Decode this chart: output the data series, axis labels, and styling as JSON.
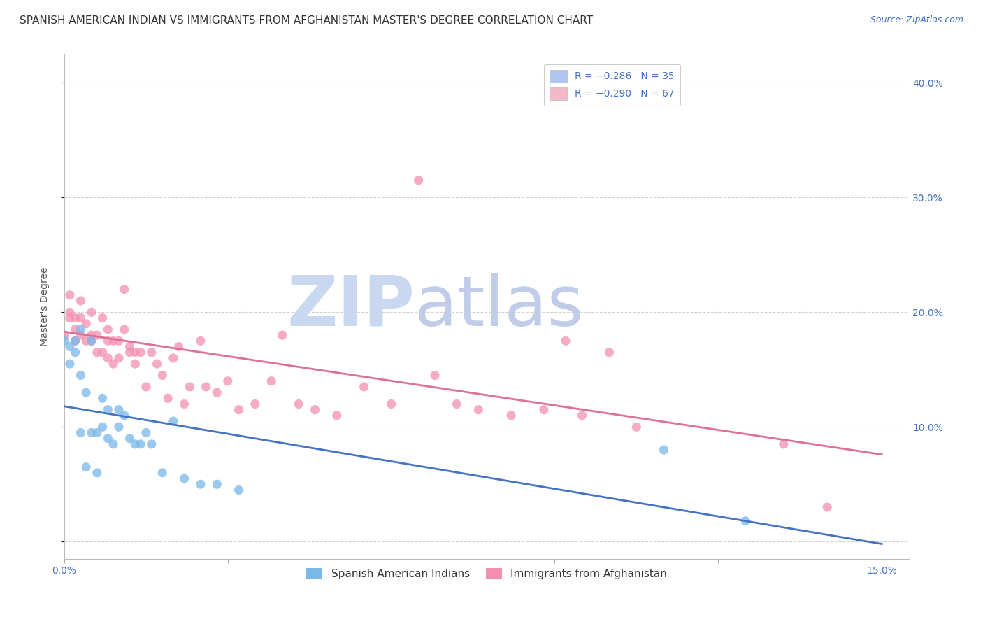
{
  "title": "SPANISH AMERICAN INDIAN VS IMMIGRANTS FROM AFGHANISTAN MASTER'S DEGREE CORRELATION CHART",
  "source": "Source: ZipAtlas.com",
  "ylabel": "Master's Degree",
  "watermark_zip": "ZIP",
  "watermark_atlas": "atlas",
  "legend_entries": [
    {
      "label": "R = −0.286   N = 35",
      "color": "#aec6f0"
    },
    {
      "label": "R = −0.290   N = 67",
      "color": "#f5b8c8"
    }
  ],
  "legend_bottom": [
    "Spanish American Indians",
    "Immigrants from Afghanistan"
  ],
  "blue_scatter_x": [
    0.0,
    0.001,
    0.001,
    0.002,
    0.002,
    0.003,
    0.003,
    0.003,
    0.004,
    0.004,
    0.005,
    0.005,
    0.006,
    0.006,
    0.007,
    0.007,
    0.008,
    0.008,
    0.009,
    0.01,
    0.01,
    0.011,
    0.012,
    0.013,
    0.014,
    0.015,
    0.016,
    0.018,
    0.02,
    0.022,
    0.025,
    0.028,
    0.032,
    0.11,
    0.125
  ],
  "blue_scatter_y": [
    0.175,
    0.17,
    0.155,
    0.175,
    0.165,
    0.095,
    0.145,
    0.185,
    0.065,
    0.13,
    0.095,
    0.175,
    0.095,
    0.06,
    0.1,
    0.125,
    0.115,
    0.09,
    0.085,
    0.115,
    0.1,
    0.11,
    0.09,
    0.085,
    0.085,
    0.095,
    0.085,
    0.06,
    0.105,
    0.055,
    0.05,
    0.05,
    0.045,
    0.08,
    0.018
  ],
  "pink_scatter_x": [
    0.0,
    0.001,
    0.001,
    0.001,
    0.002,
    0.002,
    0.002,
    0.003,
    0.003,
    0.003,
    0.004,
    0.004,
    0.005,
    0.005,
    0.005,
    0.006,
    0.006,
    0.007,
    0.007,
    0.008,
    0.008,
    0.008,
    0.009,
    0.009,
    0.01,
    0.01,
    0.011,
    0.011,
    0.012,
    0.012,
    0.013,
    0.013,
    0.014,
    0.015,
    0.016,
    0.017,
    0.018,
    0.019,
    0.02,
    0.021,
    0.022,
    0.023,
    0.025,
    0.026,
    0.028,
    0.03,
    0.032,
    0.035,
    0.038,
    0.04,
    0.043,
    0.046,
    0.05,
    0.055,
    0.06,
    0.065,
    0.068,
    0.072,
    0.076,
    0.082,
    0.088,
    0.092,
    0.095,
    0.1,
    0.105,
    0.132,
    0.14
  ],
  "pink_scatter_y": [
    0.18,
    0.195,
    0.215,
    0.2,
    0.185,
    0.195,
    0.175,
    0.195,
    0.21,
    0.18,
    0.175,
    0.19,
    0.18,
    0.2,
    0.175,
    0.18,
    0.165,
    0.195,
    0.165,
    0.185,
    0.175,
    0.16,
    0.175,
    0.155,
    0.175,
    0.16,
    0.185,
    0.22,
    0.165,
    0.17,
    0.165,
    0.155,
    0.165,
    0.135,
    0.165,
    0.155,
    0.145,
    0.125,
    0.16,
    0.17,
    0.12,
    0.135,
    0.175,
    0.135,
    0.13,
    0.14,
    0.115,
    0.12,
    0.14,
    0.18,
    0.12,
    0.115,
    0.11,
    0.135,
    0.12,
    0.315,
    0.145,
    0.12,
    0.115,
    0.11,
    0.115,
    0.175,
    0.11,
    0.165,
    0.1,
    0.085,
    0.03
  ],
  "blue_line_x": [
    0.0,
    0.15
  ],
  "blue_line_y": [
    0.118,
    -0.002
  ],
  "pink_line_x": [
    0.0,
    0.15
  ],
  "pink_line_y": [
    0.183,
    0.076
  ],
  "scatter_color_blue": "#7ab8e8",
  "scatter_color_pink": "#f48fb1",
  "line_color_blue": "#4472C4",
  "line_color_pink": "#e07090",
  "xlim": [
    0.0,
    0.155
  ],
  "ylim": [
    -0.015,
    0.425
  ],
  "yticks": [
    0.0,
    0.1,
    0.2,
    0.3,
    0.4
  ],
  "ytick_labels": [
    "",
    "10.0%",
    "20.0%",
    "30.0%",
    "40.0%"
  ],
  "xtick_vals": [
    0.0,
    0.03,
    0.06,
    0.09,
    0.12,
    0.15
  ],
  "xtick_show": [
    "0.0%",
    "",
    "",
    "",
    "",
    "15.0%"
  ],
  "background_color": "#ffffff",
  "grid_color": "#cccccc",
  "watermark_color_zip": "#c8d8f0",
  "watermark_color_atlas": "#c0cce8",
  "title_fontsize": 11,
  "axis_label_fontsize": 10,
  "tick_fontsize": 10
}
